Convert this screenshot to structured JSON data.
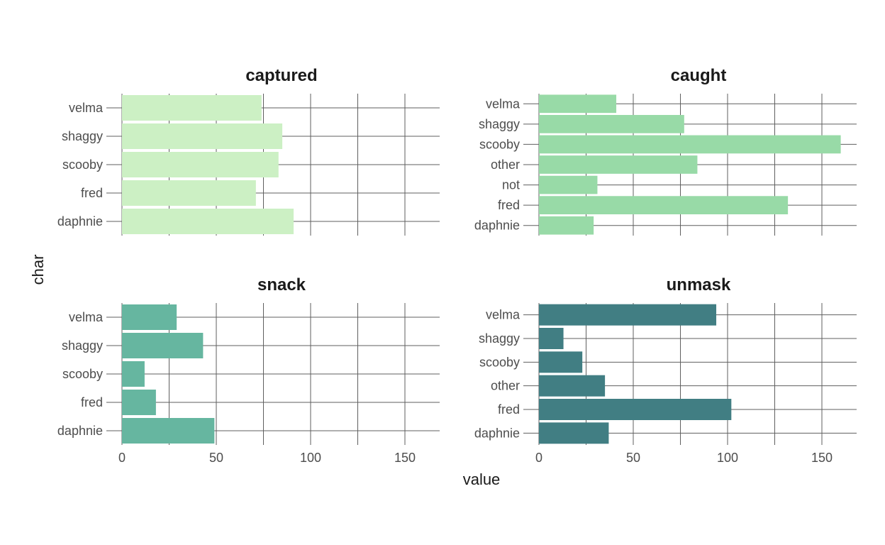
{
  "chart_data": {
    "type": "bar",
    "orientation": "horizontal",
    "facet_layout": "2x2",
    "xlabel": "value",
    "ylabel": "char",
    "xlim": [
      0,
      165
    ],
    "x_ticks": [
      0,
      50,
      100,
      150
    ],
    "grid": true,
    "legend": "none",
    "panels": [
      {
        "title": "captured",
        "color": "#CCF0C4",
        "categories": [
          "velma",
          "shaggy",
          "scooby",
          "fred",
          "daphnie"
        ],
        "values": [
          74,
          85,
          83,
          71,
          91
        ]
      },
      {
        "title": "caught",
        "color": "#98DAA7",
        "categories": [
          "velma",
          "shaggy",
          "scooby",
          "other",
          "not",
          "fred",
          "daphnie"
        ],
        "values": [
          41,
          77,
          160,
          84,
          31,
          132,
          29
        ]
      },
      {
        "title": "snack",
        "color": "#66B6A0",
        "categories": [
          "velma",
          "shaggy",
          "scooby",
          "fred",
          "daphnie"
        ],
        "values": [
          29,
          43,
          12,
          18,
          49
        ]
      },
      {
        "title": "unmask",
        "color": "#417E83",
        "categories": [
          "velma",
          "shaggy",
          "scooby",
          "other",
          "fred",
          "daphnie"
        ],
        "values": [
          94,
          13,
          23,
          35,
          102,
          37
        ]
      }
    ]
  }
}
